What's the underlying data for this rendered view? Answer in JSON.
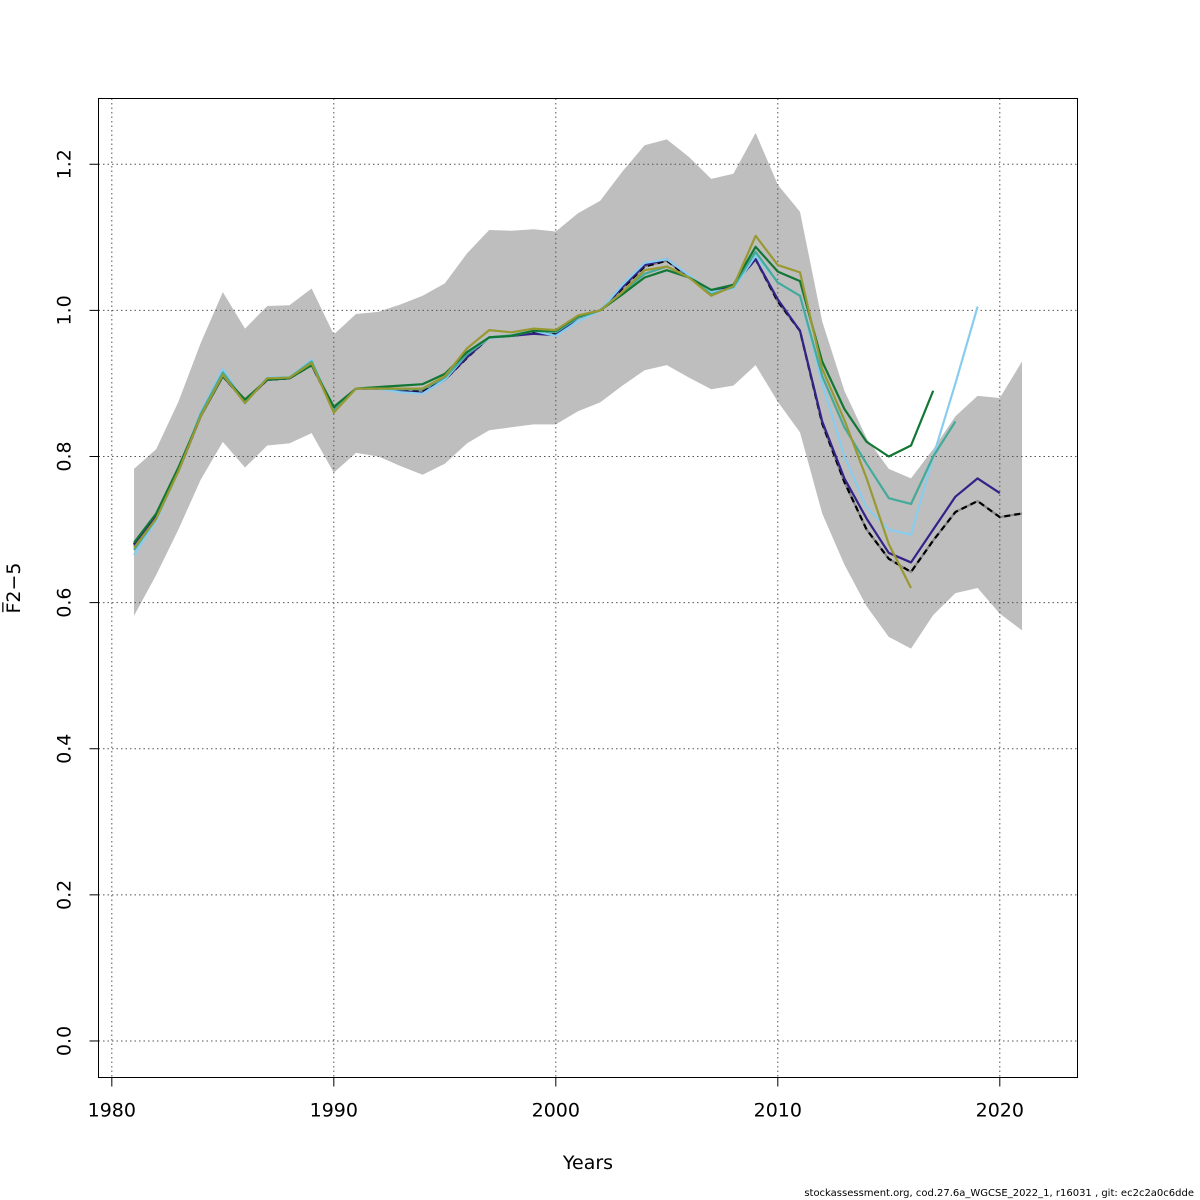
{
  "chart_data": {
    "type": "line",
    "title": "",
    "xlabel": "Years",
    "ylabel": "F̅2−5",
    "ylabel_main": "F",
    "ylabel_sub": "2−5",
    "xlim": [
      1979.4,
      2023.5
    ],
    "ylim": [
      -0.05,
      1.29
    ],
    "xticks": [
      1980,
      1990,
      2000,
      2010,
      2020
    ],
    "yticks": [
      0.0,
      0.2,
      0.4,
      0.6,
      0.8,
      1.0,
      1.2
    ],
    "ytick_labels": [
      "0.0",
      "0.2",
      "0.4",
      "0.6",
      "0.8",
      "1.0",
      "1.2"
    ],
    "grid": true,
    "confidence_band": {
      "color": "#bebebe",
      "x_start": 1981,
      "upper": [
        0.783,
        0.81,
        0.875,
        0.955,
        1.025,
        0.975,
        1.006,
        1.007,
        1.03,
        0.967,
        0.995,
        0.998,
        1.008,
        1.02,
        1.037,
        1.078,
        1.11,
        1.109,
        1.111,
        1.108,
        1.133,
        1.15,
        1.19,
        1.226,
        1.234,
        1.21,
        1.18,
        1.187,
        1.243,
        1.172,
        1.135,
        0.985,
        0.89,
        0.825,
        0.783,
        0.77,
        0.81,
        0.855,
        0.883,
        0.88,
        0.93
      ],
      "lower": [
        0.582,
        0.638,
        0.7,
        0.768,
        0.82,
        0.785,
        0.815,
        0.818,
        0.832,
        0.778,
        0.805,
        0.8,
        0.787,
        0.775,
        0.79,
        0.818,
        0.836,
        0.84,
        0.844,
        0.844,
        0.862,
        0.874,
        0.897,
        0.918,
        0.925,
        0.908,
        0.892,
        0.897,
        0.925,
        0.875,
        0.833,
        0.722,
        0.652,
        0.595,
        0.553,
        0.537,
        0.583,
        0.613,
        0.62,
        0.585,
        0.562
      ]
    },
    "series": [
      {
        "color": "#888888",
        "x_start": 1981,
        "dashed": false,
        "values": [
          0.68,
          0.72,
          0.78,
          0.855,
          0.91,
          0.875,
          0.905,
          0.907,
          0.925,
          0.865,
          0.893,
          0.893,
          0.89,
          0.889,
          0.905,
          0.935,
          0.963,
          0.965,
          0.97,
          0.968,
          0.99,
          1.0,
          1.03,
          1.06,
          1.068,
          1.045,
          1.025,
          1.035,
          1.07,
          1.012,
          0.972,
          0.845,
          0.765,
          0.7,
          0.66,
          0.642,
          0.685,
          0.724,
          0.739,
          0.717,
          0.722
        ]
      },
      {
        "color": "#000000",
        "x_start": 1981,
        "dashed": true,
        "values": [
          0.68,
          0.72,
          0.78,
          0.855,
          0.91,
          0.875,
          0.905,
          0.907,
          0.925,
          0.865,
          0.893,
          0.893,
          0.89,
          0.889,
          0.905,
          0.935,
          0.963,
          0.965,
          0.97,
          0.968,
          0.99,
          1.0,
          1.03,
          1.06,
          1.068,
          1.045,
          1.025,
          1.035,
          1.07,
          1.012,
          0.972,
          0.845,
          0.765,
          0.7,
          0.66,
          0.642,
          0.685,
          0.724,
          0.739,
          0.717,
          0.722
        ]
      },
      {
        "color": "#332288",
        "x_start": 1981,
        "dashed": false,
        "values": [
          0.678,
          0.72,
          0.78,
          0.855,
          0.91,
          0.876,
          0.905,
          0.907,
          0.926,
          0.865,
          0.893,
          0.893,
          0.889,
          0.887,
          0.905,
          0.936,
          0.963,
          0.965,
          0.968,
          0.966,
          0.99,
          1.0,
          1.032,
          1.062,
          1.07,
          1.047,
          1.025,
          1.035,
          1.07,
          1.015,
          0.972,
          0.848,
          0.77,
          0.715,
          0.668,
          0.655,
          0.7,
          0.745,
          0.77,
          0.75
        ]
      },
      {
        "color": "#88ccee",
        "x_start": 1981,
        "dashed": false,
        "values": [
          0.665,
          0.712,
          0.78,
          0.86,
          0.92,
          0.872,
          0.908,
          0.909,
          0.932,
          0.862,
          0.893,
          0.893,
          0.888,
          0.886,
          0.905,
          0.94,
          0.962,
          0.965,
          0.972,
          0.965,
          0.985,
          1.0,
          1.035,
          1.065,
          1.07,
          1.048,
          1.025,
          1.03,
          1.075,
          1.038,
          1.02,
          0.9,
          0.8,
          0.73,
          0.7,
          0.693,
          0.8,
          0.9,
          1.005
        ]
      },
      {
        "color": "#44aa99",
        "x_start": 1981,
        "dashed": false,
        "values": [
          0.672,
          0.715,
          0.78,
          0.858,
          0.915,
          0.875,
          0.907,
          0.908,
          0.93,
          0.863,
          0.893,
          0.893,
          0.892,
          0.892,
          0.908,
          0.94,
          0.963,
          0.966,
          0.972,
          0.97,
          0.99,
          1.0,
          1.025,
          1.05,
          1.06,
          1.045,
          1.022,
          1.032,
          1.08,
          1.038,
          1.02,
          0.91,
          0.84,
          0.79,
          0.743,
          0.735,
          0.8,
          0.848
        ]
      },
      {
        "color": "#117733",
        "x_start": 1981,
        "dashed": false,
        "values": [
          0.682,
          0.722,
          0.785,
          0.855,
          0.91,
          0.878,
          0.905,
          0.907,
          0.925,
          0.868,
          0.893,
          0.895,
          0.897,
          0.899,
          0.913,
          0.943,
          0.963,
          0.965,
          0.972,
          0.972,
          0.992,
          1.0,
          1.022,
          1.045,
          1.055,
          1.045,
          1.028,
          1.035,
          1.087,
          1.053,
          1.04,
          0.93,
          0.865,
          0.82,
          0.8,
          0.815,
          0.89
        ]
      },
      {
        "color": "#999933",
        "x_start": 1981,
        "dashed": false,
        "values": [
          0.675,
          0.715,
          0.78,
          0.855,
          0.912,
          0.873,
          0.907,
          0.908,
          0.928,
          0.86,
          0.893,
          0.893,
          0.893,
          0.893,
          0.91,
          0.948,
          0.973,
          0.97,
          0.975,
          0.973,
          0.993,
          1.0,
          1.025,
          1.055,
          1.06,
          1.045,
          1.02,
          1.033,
          1.102,
          1.062,
          1.052,
          0.92,
          0.85,
          0.77,
          0.68,
          0.62
        ]
      }
    ]
  },
  "footer": "stockassessment.org, cod.27.6a_WGCSE_2022_1, r16031 , git: ec2c2a0c6dde"
}
